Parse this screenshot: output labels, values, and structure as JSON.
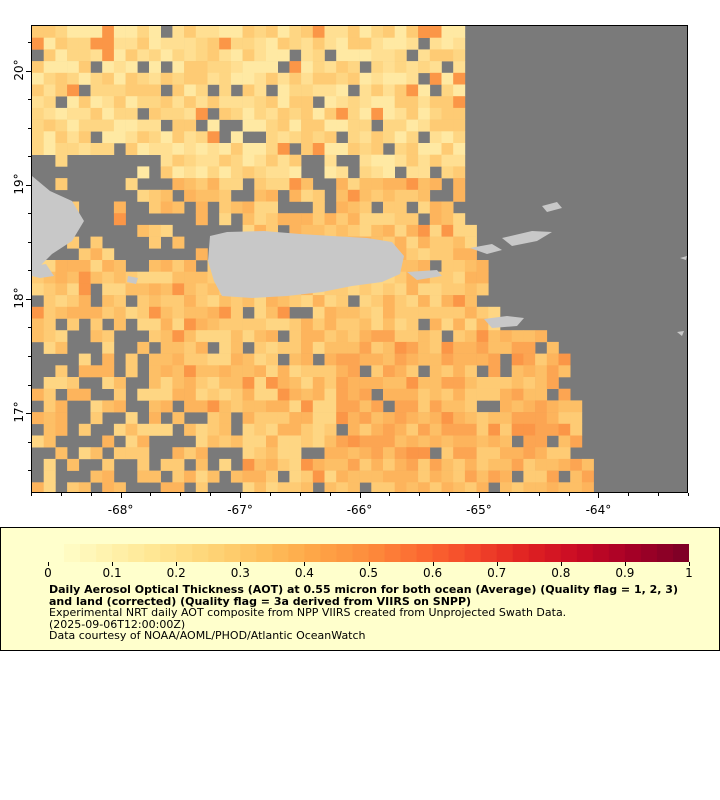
{
  "map": {
    "lon_ticks": [
      "-68°",
      "-67°",
      "-66°",
      "-65°",
      "-64°"
    ],
    "lon_values": [
      -68,
      -67,
      -66,
      -65,
      -64
    ],
    "lat_ticks": [
      "17°",
      "18°",
      "19°",
      "20°"
    ],
    "lat_values": [
      17,
      18,
      19,
      20
    ],
    "lon_range": [
      -68.75,
      -63.25
    ],
    "lat_range": [
      16.3,
      20.4
    ],
    "land_color": "#c8c8c8",
    "nodata_color": "#7a7a7a"
  },
  "colorbar": {
    "ticks": [
      "0",
      "0.1",
      "0.2",
      "0.3",
      "0.4",
      "0.5",
      "0.6",
      "0.7",
      "0.8",
      "0.9",
      "1"
    ],
    "range": [
      0,
      1
    ],
    "colors": [
      "#ffffcc",
      "#fff2ad",
      "#ffe590",
      "#fed476",
      "#febf5c",
      "#fea546",
      "#fd8c3c",
      "#fc6a31",
      "#f3472a",
      "#e12322",
      "#c90b24",
      "#a70026",
      "#800026"
    ]
  },
  "legend": {
    "title": "Daily Aerosol Optical Thickness (AOT) at 0.55 micron for both ocean (Average) (Quality flag = 1, 2, 3) and land (corrected) (Quality flag = 3a derived from VIIRS on SNPP)",
    "line1": "Experimental NRT daily AOT composite from NPP VIIRS created from Unprojected Swath Data.",
    "line2": "(2025-09-06T12:00:00Z)",
    "line3": "Data courtesy of NOAA/AOML/PHOD/Atlantic OceanWatch"
  }
}
